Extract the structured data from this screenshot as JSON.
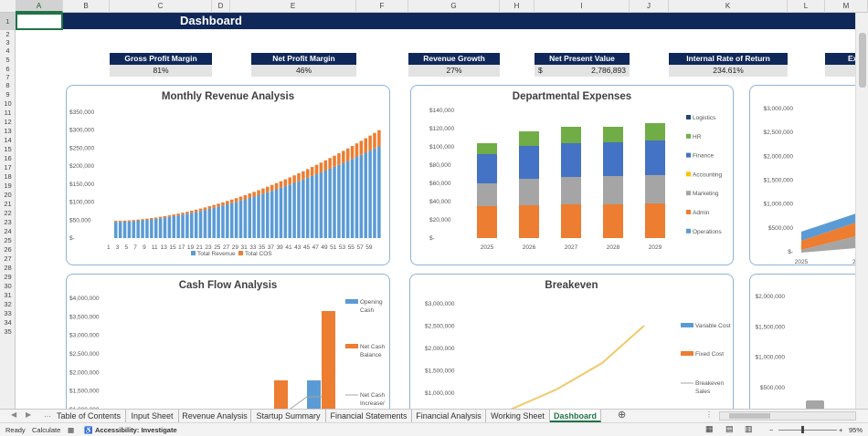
{
  "columns": [
    {
      "label": "A"
    },
    {
      "label": "B"
    },
    {
      "label": "C"
    },
    {
      "label": "D"
    },
    {
      "label": "E"
    },
    {
      "label": "F"
    },
    {
      "label": "G"
    },
    {
      "label": "H"
    },
    {
      "label": "I"
    },
    {
      "label": "J"
    },
    {
      "label": "K"
    },
    {
      "label": "L"
    },
    {
      "label": "M"
    }
  ],
  "rows": [
    "1",
    "2",
    "3",
    "4",
    "5",
    "6",
    "7",
    "8",
    "9",
    "10",
    "11",
    "12",
    "13",
    "14",
    "15",
    "16",
    "17",
    "18",
    "19",
    "20",
    "21",
    "22",
    "23",
    "24",
    "25",
    "26",
    "27",
    "28",
    "29",
    "30",
    "31",
    "32",
    "33",
    "34",
    "35"
  ],
  "banner_title": "Dashboard",
  "kpis": [
    {
      "label": "Gross Profit Margin",
      "value": "81%"
    },
    {
      "label": "Net Profit Margin",
      "value": "46%"
    },
    {
      "label": "Revenue Growth",
      "value": "27%"
    },
    {
      "label": "Net Present Value",
      "currency": "$",
      "value": "2,786,893"
    },
    {
      "label": "Internal Rate of Return",
      "value": "234.61%"
    },
    {
      "label": "Ex"
    }
  ],
  "chart_data": [
    {
      "type": "bar",
      "title": "Monthly Revenue Analysis",
      "y_ticks": [
        "$350,000",
        "$300,000",
        "$250,000",
        "$200,000",
        "$150,000",
        "$100,000",
        "$50,000",
        "$-"
      ],
      "ylim": [
        0,
        350000
      ],
      "x_ticks": [
        "1",
        "3",
        "5",
        "7",
        "9",
        "11",
        "13",
        "15",
        "17",
        "19",
        "21",
        "23",
        "25",
        "27",
        "29",
        "31",
        "33",
        "35",
        "37",
        "39",
        "41",
        "43",
        "45",
        "47",
        "49",
        "51",
        "53",
        "55",
        "57",
        "59"
      ],
      "series": [
        {
          "name": "Total Revenue",
          "color": "#5b9bd5",
          "start": 45000,
          "end": 255000,
          "n": 60
        },
        {
          "name": "Total COS",
          "color": "#ed7d31",
          "start": 3000,
          "end": 45000,
          "n": 60
        }
      ]
    },
    {
      "type": "bar",
      "title": "Departmental Expenses",
      "y_ticks": [
        "$140,000",
        "$120,000",
        "$100,000",
        "$80,000",
        "$60,000",
        "$40,000",
        "$20,000",
        "$-"
      ],
      "ylim": [
        0,
        140000
      ],
      "categories": [
        "2025",
        "2026",
        "2027",
        "2028",
        "2029"
      ],
      "series": [
        {
          "name": "Logistics",
          "color": "#264478",
          "values": [
            0,
            0,
            0,
            0,
            0
          ]
        },
        {
          "name": "HR",
          "color": "#70ad47",
          "values": [
            12000,
            16000,
            18000,
            17000,
            19000
          ]
        },
        {
          "name": "Finance",
          "color": "#4472c4",
          "values": [
            32000,
            36000,
            37000,
            37000,
            38000
          ]
        },
        {
          "name": "Accounting",
          "color": "#ffc000",
          "values": [
            0,
            0,
            0,
            0,
            0
          ]
        },
        {
          "name": "Marketing",
          "color": "#a5a5a5",
          "values": [
            25000,
            29000,
            30000,
            31000,
            31000
          ]
        },
        {
          "name": "Admin",
          "color": "#ed7d31",
          "values": [
            35000,
            36000,
            37000,
            37000,
            38000
          ]
        },
        {
          "name": "Operations",
          "color": "#5b9bd5",
          "values": [
            0,
            0,
            0,
            0,
            0
          ]
        }
      ],
      "legend": [
        "Logistics",
        "HR",
        "Finance",
        "Accounting",
        "Marketing",
        "Admin",
        "Operations"
      ]
    },
    {
      "type": "area",
      "y_ticks": [
        "$3,000,000",
        "$2,500,000",
        "$2,000,000",
        "$1,500,000",
        "$1,000,000",
        "$500,000",
        "$-"
      ],
      "x_ticks": [
        "2025",
        "20"
      ]
    },
    {
      "type": "bar",
      "title": "Cash Flow Analysis",
      "y_ticks": [
        "$4,000,000",
        "$3,500,000",
        "$3,000,000",
        "$2,500,000",
        "$2,000,000",
        "$1,500,000",
        "$1,000,000"
      ],
      "legend": [
        "Opening Cash",
        "Net Cash Balance",
        "Net Cash Increase/"
      ]
    },
    {
      "type": "line",
      "title": "Breakeven",
      "y_ticks": [
        "$3,000,000",
        "$2,500,000",
        "$2,000,000",
        "$1,500,000",
        "$1,000,000"
      ],
      "legend": [
        "Variable Cost",
        "Fixed Cost",
        "Breakeven Sales"
      ]
    },
    {
      "type": "bar",
      "y_ticks": [
        "$2,000,000",
        "$1,500,000",
        "$1,000,000",
        "$500,000"
      ]
    }
  ],
  "tabs": [
    {
      "label": "Table of Contents"
    },
    {
      "label": "Input Sheet"
    },
    {
      "label": "Revenue Analysis"
    },
    {
      "label": "Startup Summary"
    },
    {
      "label": "Financial Statements"
    },
    {
      "label": "Financial Analysis"
    },
    {
      "label": "Working Sheet"
    },
    {
      "label": "Dashboard",
      "active": true
    }
  ],
  "status": {
    "ready": "Ready",
    "calculate": "Calculate",
    "accessibility": "Accessibility: Investigate",
    "zoom": "95%"
  }
}
